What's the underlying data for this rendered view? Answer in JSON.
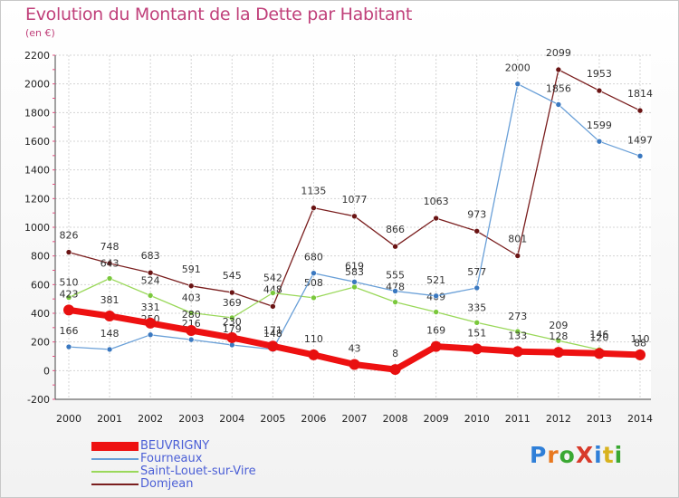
{
  "title": "Evolution du Montant de la Dette par Habitant",
  "unit": "(en €)",
  "brand": {
    "text": "ProXiti",
    "letter_colors": [
      "#2f7fd8",
      "#e8781e",
      "#3aa832",
      "#d83a2a",
      "#2f7fd8",
      "#d8b21e",
      "#3aa832"
    ]
  },
  "chart_data": {
    "type": "line",
    "categories": [
      "2000",
      "2001",
      "2002",
      "2003",
      "2004",
      "2005",
      "2006",
      "2007",
      "2008",
      "2009",
      "2010",
      "2011",
      "2012",
      "2013",
      "2014"
    ],
    "ylim": [
      -200,
      2200
    ],
    "yticks": [
      -200,
      0,
      200,
      400,
      600,
      800,
      1000,
      1200,
      1400,
      1600,
      1800,
      2000,
      2200
    ],
    "grid": true,
    "legend_position": "bottom-left",
    "series": [
      {
        "name": "Domjean",
        "color": "#7a1e1e",
        "marker": "#6a1414",
        "width": 1.3,
        "values": [
          826,
          748,
          683,
          591,
          545,
          448,
          1135,
          1077,
          866,
          1063,
          973,
          801,
          2099,
          1953,
          1814
        ]
      },
      {
        "name": "Saint-Louet-sur-Vire",
        "color": "#9ad85a",
        "marker": "#7ac83c",
        "width": 1.3,
        "values": [
          510,
          643,
          524,
          403,
          369,
          542,
          508,
          583,
          478,
          409,
          335,
          273,
          209,
          146,
          88
        ]
      },
      {
        "name": "Fourneaux",
        "color": "#6aa0d8",
        "marker": "#3a78c0",
        "width": 1.3,
        "values": [
          166,
          148,
          250,
          216,
          179,
          148,
          680,
          619,
          555,
          521,
          577,
          2000,
          1856,
          1599,
          1497
        ]
      },
      {
        "name": "BEUVRIGNY",
        "color": "#ee1111",
        "marker": "#e81010",
        "width": 7,
        "values": [
          423,
          381,
          331,
          280,
          230,
          171,
          110,
          43,
          8,
          169,
          151,
          133,
          128,
          120,
          110
        ]
      }
    ]
  },
  "legend": [
    {
      "name": "BEUVRIGNY",
      "color": "#ee1111",
      "thick": true
    },
    {
      "name": "Fourneaux",
      "color": "#6aa0d8",
      "thick": false
    },
    {
      "name": "Saint-Louet-sur-Vire",
      "color": "#9ad85a",
      "thick": false
    },
    {
      "name": "Domjean",
      "color": "#7a1e1e",
      "thick": false
    }
  ]
}
